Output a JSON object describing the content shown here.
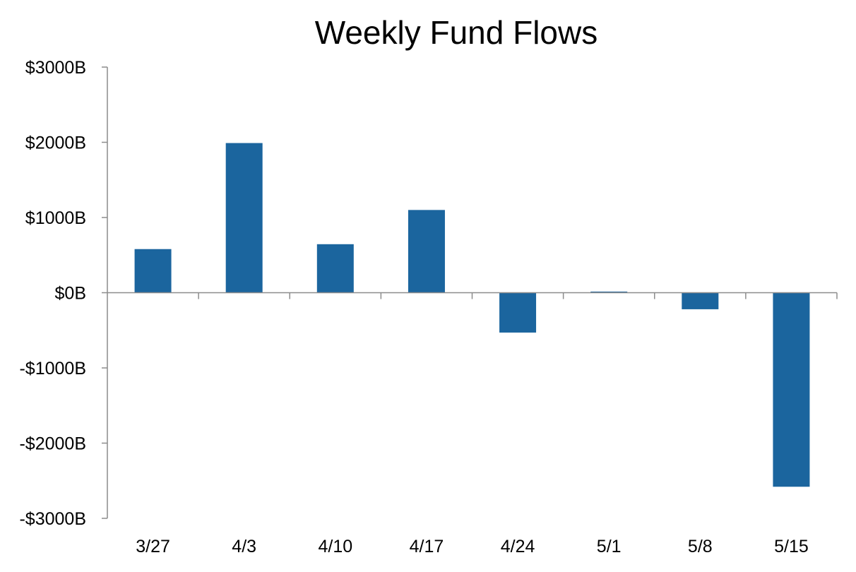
{
  "chart_data": {
    "type": "bar",
    "title": "Weekly Fund Flows",
    "xlabel": "",
    "ylabel": "",
    "categories": [
      "3/27",
      "4/3",
      "4/10",
      "4/17",
      "4/24",
      "5/1",
      "5/8",
      "5/15"
    ],
    "values": [
      580,
      1990,
      645,
      1100,
      -530,
      15,
      -220,
      -2580
    ],
    "ylim": [
      -3000,
      3000
    ],
    "yticks": [
      3000,
      2000,
      1000,
      0,
      -1000,
      -2000,
      -3000
    ],
    "ytick_labels": [
      "$3000B",
      "$2000B",
      "$1000B",
      "$0B",
      "-$1000B",
      "-$2000B",
      "-$3000B"
    ],
    "grid": false,
    "legend": "none",
    "bar_color": "#1b659e",
    "axis_color": "#8c8c8c"
  }
}
